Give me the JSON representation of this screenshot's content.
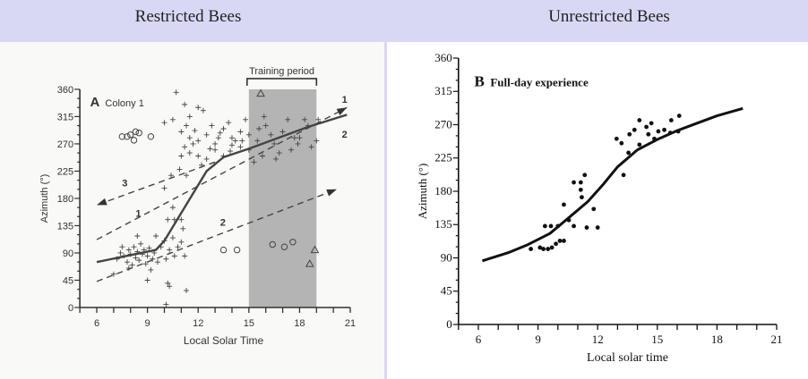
{
  "header": {
    "left_title": "Restricted Bees",
    "right_title": "Unrestricted Bees",
    "color": "#d8d8f4"
  },
  "chart_data": [
    {
      "type": "scatter",
      "panel": "A",
      "title": "Colony 1",
      "xlabel": "Local Solar Time",
      "ylabel": "Azimuth (°)",
      "xlim": [
        5,
        21
      ],
      "ylim": [
        0,
        360
      ],
      "xticks": [
        6,
        9,
        12,
        15,
        18,
        21
      ],
      "yticks": [
        0,
        45,
        90,
        135,
        180,
        225,
        270,
        315,
        360
      ],
      "shaded_region": {
        "label": "Training period",
        "x": [
          15,
          19
        ]
      },
      "plus_points": [
        [
          7.2,
          80
        ],
        [
          7.4,
          90
        ],
        [
          7.5,
          100
        ],
        [
          7.6,
          85
        ],
        [
          7.8,
          75
        ],
        [
          7.9,
          95
        ],
        [
          8.0,
          88
        ],
        [
          8.1,
          70
        ],
        [
          8.2,
          100
        ],
        [
          8.3,
          82
        ],
        [
          8.4,
          92
        ],
        [
          8.5,
          78
        ],
        [
          8.6,
          105
        ],
        [
          8.7,
          88
        ],
        [
          8.8,
          95
        ],
        [
          8.9,
          72
        ],
        [
          9.0,
          85
        ],
        [
          9.1,
          98
        ],
        [
          9.2,
          62
        ],
        [
          9.3,
          80
        ],
        [
          9.4,
          90
        ],
        [
          9.6,
          75
        ],
        [
          9.8,
          100
        ],
        [
          10.0,
          110
        ],
        [
          10.1,
          80
        ],
        [
          10.3,
          95
        ],
        [
          10.5,
          115
        ],
        [
          10.6,
          85
        ],
        [
          10.8,
          100
        ],
        [
          11.0,
          108
        ],
        [
          11.2,
          85
        ],
        [
          7.0,
          55
        ],
        [
          7.9,
          65
        ],
        [
          9.0,
          45
        ],
        [
          10.2,
          40
        ],
        [
          10.3,
          35
        ],
        [
          11.3,
          28
        ],
        [
          10.1,
          5
        ],
        [
          8.4,
          118
        ],
        [
          9.5,
          118
        ],
        [
          10.2,
          145
        ],
        [
          10.6,
          145
        ],
        [
          11.0,
          145
        ],
        [
          11.1,
          130
        ],
        [
          10.5,
          165
        ],
        [
          10.0,
          197
        ],
        [
          10.4,
          218
        ],
        [
          10.9,
          228
        ],
        [
          11.3,
          218
        ],
        [
          10.7,
          355
        ],
        [
          11.3,
          300
        ],
        [
          11.5,
          315
        ],
        [
          12.0,
          330
        ],
        [
          12.3,
          325
        ],
        [
          11.2,
          335
        ],
        [
          10.0,
          305
        ],
        [
          10.5,
          310
        ],
        [
          11.0,
          290
        ],
        [
          11.5,
          280
        ],
        [
          12,
          275
        ],
        [
          12.5,
          285
        ],
        [
          13,
          270
        ],
        [
          13.5,
          295
        ],
        [
          14,
          280
        ],
        [
          14.5,
          265
        ],
        [
          15,
          285
        ],
        [
          15.5,
          275
        ],
        [
          16,
          300
        ],
        [
          16.5,
          270
        ],
        [
          17,
          290
        ],
        [
          17.5,
          260
        ],
        [
          18,
          280
        ],
        [
          18.5,
          300
        ],
        [
          19,
          275
        ],
        [
          11.5,
          255
        ],
        [
          12,
          250
        ],
        [
          12.5,
          245
        ],
        [
          13,
          260
        ],
        [
          13.5,
          250
        ],
        [
          14,
          268
        ],
        [
          14.5,
          290
        ],
        [
          15,
          260
        ],
        [
          15.8,
          250
        ],
        [
          16.8,
          255
        ],
        [
          17.3,
          310
        ],
        [
          18.3,
          310
        ],
        [
          11,
          250
        ],
        [
          11.2,
          265
        ],
        [
          12.8,
          300
        ],
        [
          13.8,
          305
        ],
        [
          14.8,
          310
        ],
        [
          15.9,
          315
        ],
        [
          16.3,
          285
        ],
        [
          17.7,
          280
        ],
        [
          18.7,
          265
        ],
        [
          19.1,
          310
        ],
        [
          12.2,
          235
        ],
        [
          11.7,
          270
        ],
        [
          13.2,
          280
        ],
        [
          14.2,
          275
        ],
        [
          15.3,
          240
        ],
        [
          16.6,
          245
        ],
        [
          12.7,
          262
        ],
        [
          13.3,
          288
        ],
        [
          14.6,
          275
        ],
        [
          15.6,
          295
        ],
        [
          17.9,
          270
        ],
        [
          11.8,
          292
        ],
        [
          13.9,
          258
        ]
      ],
      "circle_points": [
        [
          7.5,
          282
        ],
        [
          7.8,
          282
        ],
        [
          8.0,
          285
        ],
        [
          8.2,
          276
        ],
        [
          8.3,
          290
        ],
        [
          8.5,
          288
        ],
        [
          9.2,
          282
        ],
        [
          13.5,
          95
        ],
        [
          14.3,
          95
        ],
        [
          16.4,
          104
        ],
        [
          17.1,
          100
        ],
        [
          17.6,
          108
        ]
      ],
      "triangle_points": [
        [
          15.7,
          353
        ],
        [
          18.9,
          95
        ],
        [
          18.6,
          72
        ]
      ],
      "lines": [
        {
          "label": "3",
          "style": "dashed",
          "points": [
            [
              13.0,
              240
            ],
            [
              6.0,
              169
            ]
          ],
          "label_at": [
            7.5,
            200
          ]
        },
        {
          "label": "1",
          "style": "dashed",
          "points": [
            [
              6.0,
              112
            ],
            [
              20.8,
              330
            ]
          ],
          "label_at": [
            8.3,
            150
          ]
        },
        {
          "label": "2",
          "style": "dashed",
          "points": [
            [
              6.0,
              43
            ],
            [
              20.2,
              195
            ]
          ],
          "label_at": [
            13.3,
            135
          ]
        },
        {
          "label": "",
          "style": "solid",
          "points": [
            [
              6.0,
              75
            ],
            [
              9.5,
              95
            ],
            [
              10.0,
              110
            ],
            [
              12.5,
              225
            ],
            [
              13.5,
              248
            ],
            [
              15,
              262
            ],
            [
              18.5,
              298
            ],
            [
              20.8,
              318
            ]
          ]
        }
      ],
      "end_labels": [
        {
          "text": "1",
          "at": [
            20.5,
            338
          ]
        },
        {
          "text": "2",
          "at": [
            20.5,
            280
          ]
        }
      ]
    },
    {
      "type": "line",
      "panel": "B",
      "title": "Full-day experience",
      "xlabel": "Local solar time",
      "ylabel": "Azimuth (°)",
      "xlim": [
        5,
        21
      ],
      "ylim": [
        0,
        360
      ],
      "xticks": [
        6,
        9,
        12,
        15,
        18,
        21
      ],
      "yticks": [
        0,
        45,
        90,
        135,
        180,
        225,
        270,
        315,
        360
      ],
      "points": [
        [
          8.64,
          102
        ],
        [
          9.1,
          104
        ],
        [
          9.27,
          102
        ],
        [
          9.5,
          102
        ],
        [
          9.7,
          104
        ],
        [
          9.9,
          109
        ],
        [
          10.1,
          113
        ],
        [
          10.3,
          113
        ],
        [
          9.35,
          133
        ],
        [
          9.65,
          133
        ],
        [
          10.0,
          133
        ],
        [
          10.3,
          162
        ],
        [
          10.55,
          141
        ],
        [
          10.8,
          133
        ],
        [
          10.8,
          192
        ],
        [
          11.15,
          192
        ],
        [
          11.15,
          182
        ],
        [
          11.2,
          172
        ],
        [
          11.35,
          202
        ],
        [
          11.45,
          131
        ],
        [
          11.8,
          156
        ],
        [
          12.0,
          131
        ],
        [
          12.95,
          251
        ],
        [
          13.2,
          245
        ],
        [
          13.3,
          202
        ],
        [
          13.55,
          232
        ],
        [
          13.6,
          257
        ],
        [
          13.85,
          263
        ],
        [
          14.1,
          276
        ],
        [
          14.1,
          243
        ],
        [
          14.45,
          267
        ],
        [
          14.7,
          272
        ],
        [
          14.55,
          257
        ],
        [
          14.85,
          251
        ],
        [
          15.05,
          261
        ],
        [
          15.35,
          263
        ],
        [
          15.65,
          259
        ],
        [
          15.7,
          276
        ],
        [
          16.1,
          282
        ],
        [
          16.05,
          261
        ]
      ],
      "curve": [
        [
          6.2,
          86
        ],
        [
          7.5,
          97
        ],
        [
          8.5,
          108
        ],
        [
          9.6,
          123
        ],
        [
          10.8,
          150
        ],
        [
          11.5,
          166
        ],
        [
          12.3,
          190
        ],
        [
          13,
          213
        ],
        [
          14,
          236
        ],
        [
          15,
          250
        ],
        [
          16,
          262
        ],
        [
          17,
          272
        ],
        [
          18,
          282
        ],
        [
          19.3,
          292
        ]
      ]
    }
  ]
}
